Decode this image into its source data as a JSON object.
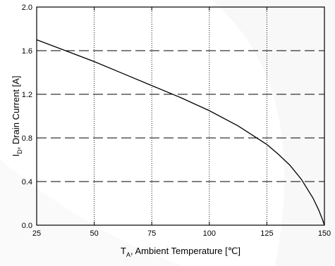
{
  "chart_data": {
    "type": "line",
    "title": "",
    "xlabel": {
      "main": "T",
      "sub": "A",
      "rest": ", Ambient Temperature [℃]"
    },
    "ylabel": {
      "main": "I",
      "sub": "D",
      "rest": ", Drain Current [A]"
    },
    "xlim": [
      25,
      150
    ],
    "ylim": [
      0.0,
      2.0
    ],
    "x_ticks": [
      "25",
      "50",
      "75",
      "100",
      "125",
      "150"
    ],
    "y_ticks": [
      "0.0",
      "0.4",
      "0.8",
      "1.2",
      "1.6",
      "2.0"
    ],
    "grid": {
      "vertical": "dotted",
      "horizontal": "dashed"
    },
    "series": [
      {
        "color": "#000000",
        "x": [
          25,
          37.5,
          50,
          62.5,
          75,
          87.5,
          100,
          112.5,
          125,
          130,
          135,
          140,
          145,
          147.5,
          149,
          150
        ],
        "y": [
          1.7,
          1.6,
          1.5,
          1.39,
          1.28,
          1.17,
          1.05,
          0.91,
          0.74,
          0.65,
          0.55,
          0.42,
          0.25,
          0.14,
          0.06,
          0.0
        ]
      }
    ]
  }
}
